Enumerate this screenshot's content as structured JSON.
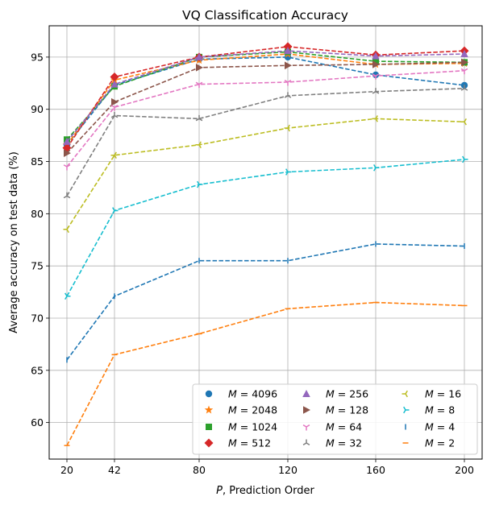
{
  "chart_data": {
    "type": "line",
    "title": "VQ Classification Accuracy",
    "xlabel_italic": "P",
    "xlabel_rest": ", Prediction Order",
    "ylabel": "Average accuracy on test data (%)",
    "x": [
      20,
      42,
      80,
      120,
      160,
      200
    ],
    "x_tick_labels": [
      "20",
      "42",
      "80",
      "120",
      "160",
      "200"
    ],
    "y_ticks": [
      60,
      65,
      70,
      75,
      80,
      85,
      90,
      95
    ],
    "ylim": [
      56.5,
      98.0
    ],
    "grid": true,
    "legend_placement": "lower-right",
    "legend_columns": 3,
    "series": [
      {
        "name_var": "M",
        "name_val": "4096",
        "color": "#1f77b4",
        "marker": "circle",
        "values": [
          86.6,
          92.3,
          94.8,
          95.0,
          93.3,
          92.3
        ]
      },
      {
        "name_var": "M",
        "name_val": "2048",
        "color": "#ff7f0e",
        "marker": "star",
        "values": [
          86.6,
          92.8,
          94.7,
          95.3,
          94.3,
          94.4
        ]
      },
      {
        "name_var": "M",
        "name_val": "1024",
        "color": "#2ca02c",
        "marker": "square",
        "values": [
          87.1,
          92.2,
          95.0,
          95.5,
          94.6,
          94.5
        ]
      },
      {
        "name_var": "M",
        "name_val": "512",
        "color": "#d62728",
        "marker": "diamond",
        "values": [
          86.3,
          93.1,
          95.0,
          96.0,
          95.2,
          95.6
        ]
      },
      {
        "name_var": "M",
        "name_val": "256",
        "color": "#9467bd",
        "marker": "triangle-up",
        "values": [
          86.9,
          92.4,
          95.0,
          95.6,
          95.1,
          95.3
        ]
      },
      {
        "name_var": "M",
        "name_val": "128",
        "color": "#8c564b",
        "marker": "triangle-right",
        "values": [
          85.8,
          90.7,
          94.0,
          94.2,
          94.3,
          94.5
        ]
      },
      {
        "name_var": "M",
        "name_val": "64",
        "color": "#e377c2",
        "marker": "tri-down",
        "values": [
          84.5,
          90.2,
          92.4,
          92.6,
          93.2,
          93.7
        ]
      },
      {
        "name_var": "M",
        "name_val": "32",
        "color": "#7f7f7f",
        "marker": "tri-up",
        "values": [
          81.7,
          89.4,
          89.1,
          91.3,
          91.7,
          92.0
        ]
      },
      {
        "name_var": "M",
        "name_val": "16",
        "color": "#bcbd22",
        "marker": "tri-left",
        "values": [
          78.5,
          85.6,
          86.6,
          88.2,
          89.1,
          88.8
        ]
      },
      {
        "name_var": "M",
        "name_val": "8",
        "color": "#17becf",
        "marker": "tri-right",
        "values": [
          72.1,
          80.3,
          82.8,
          84.0,
          84.4,
          85.2
        ]
      },
      {
        "name_var": "M",
        "name_val": "4",
        "color": "#1f77b4",
        "marker": "vline",
        "values": [
          66.0,
          72.1,
          75.5,
          75.5,
          77.1,
          76.9
        ]
      },
      {
        "name_var": "M",
        "name_val": "2",
        "color": "#ff7f0e",
        "marker": "hline",
        "values": [
          57.8,
          66.5,
          68.5,
          70.9,
          71.5,
          71.2
        ]
      }
    ]
  }
}
